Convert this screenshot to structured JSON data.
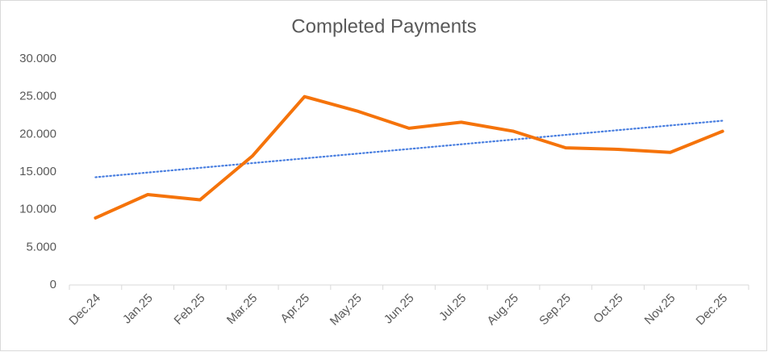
{
  "chart_data": {
    "type": "line",
    "title": "Completed Payments",
    "categories": [
      "Dec.24",
      "Jan.25",
      "Feb.25",
      "Mar.25",
      "Apr.25",
      "May.25",
      "Jun.25",
      "Jul.25",
      "Aug.25",
      "Sep.25",
      "Oct.25",
      "Nov.25",
      "Dec.25"
    ],
    "values": [
      8900,
      12000,
      11300,
      17100,
      25000,
      23100,
      20800,
      21600,
      20400,
      18200,
      18000,
      17600,
      20400
    ],
    "color": "#f5730a",
    "trendline": {
      "color": "#4a7fe0",
      "values": [
        14300,
        21800
      ]
    },
    "ylim": [
      0,
      30000
    ],
    "yticks": [
      0,
      {
        "value": 5000,
        "label": "5.000"
      },
      {
        "value": 10000,
        "label": "10.000"
      },
      {
        "value": 15000,
        "label": "15.000"
      },
      {
        "value": 20000,
        "label": "20.000"
      },
      {
        "value": 25000,
        "label": "25.000"
      },
      {
        "value": 30000,
        "label": "30.000"
      }
    ],
    "grid": false
  }
}
